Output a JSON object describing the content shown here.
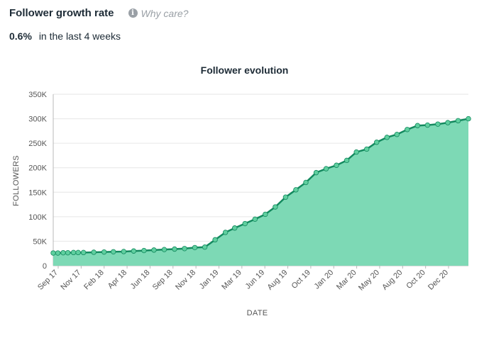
{
  "header": {
    "title": "Follower growth rate",
    "why_label": "Why care?",
    "info_icon": "info-icon"
  },
  "rate": {
    "value": "0.6%",
    "text": "in the last 4 weeks"
  },
  "chart_data": {
    "type": "area",
    "title": "Follower evolution",
    "xlabel": "DATE",
    "ylabel": "FOLLOWERS",
    "ylim": [
      0,
      350000
    ],
    "yticks": [
      0,
      50000,
      100000,
      150000,
      200000,
      250000,
      300000,
      350000
    ],
    "ytick_labels": [
      "0",
      "50K",
      "100K",
      "150K",
      "200K",
      "250K",
      "300K",
      "350K"
    ],
    "xtick_labels": [
      "Sep 17",
      "Nov 17",
      "Feb 18",
      "Apr 18",
      "Jun 18",
      "Sep 18",
      "Nov 18",
      "Jan 19",
      "Mar 19",
      "Jun 19",
      "Aug 19",
      "Oct 19",
      "Jan 20",
      "Mar 20",
      "May 20",
      "Aug 20",
      "Oct 20",
      "Dec 20"
    ],
    "grid": true,
    "colors": {
      "fill": "#7dd9b5",
      "line": "#148a5f",
      "marker": "#5fcf9f"
    },
    "series": [
      {
        "x": [
          "2017-09-01",
          "2017-09-15",
          "2017-10-01",
          "2017-10-15",
          "2017-11-01",
          "2017-11-15",
          "2017-12-01",
          "2018-01-01",
          "2018-02-01",
          "2018-03-01",
          "2018-04-01",
          "2018-05-01",
          "2018-06-01",
          "2018-07-01",
          "2018-08-01",
          "2018-09-01",
          "2018-10-01",
          "2018-11-01",
          "2018-12-01",
          "2019-01-01",
          "2019-02-01",
          "2019-03-01",
          "2019-04-01",
          "2019-05-01",
          "2019-06-01",
          "2019-07-01",
          "2019-08-01",
          "2019-09-01",
          "2019-10-01",
          "2019-11-01",
          "2019-12-01",
          "2020-01-01",
          "2020-02-01",
          "2020-03-01",
          "2020-04-01",
          "2020-05-01",
          "2020-06-01",
          "2020-07-01",
          "2020-08-01",
          "2020-09-01",
          "2020-10-01",
          "2020-11-01",
          "2020-12-01",
          "2021-01-01",
          "2021-02-01"
        ],
        "values": [
          26000,
          26000,
          26500,
          26500,
          27000,
          27000,
          27000,
          27500,
          28000,
          28500,
          29000,
          30000,
          31000,
          32000,
          33000,
          34000,
          35000,
          37000,
          38000,
          53000,
          68000,
          77000,
          86000,
          95000,
          105000,
          120000,
          140000,
          155000,
          170000,
          190000,
          198000,
          205000,
          215000,
          232000,
          238000,
          252000,
          262000,
          268000,
          278000,
          286000,
          287000,
          289000,
          292000,
          296000,
          300000
        ]
      }
    ]
  }
}
